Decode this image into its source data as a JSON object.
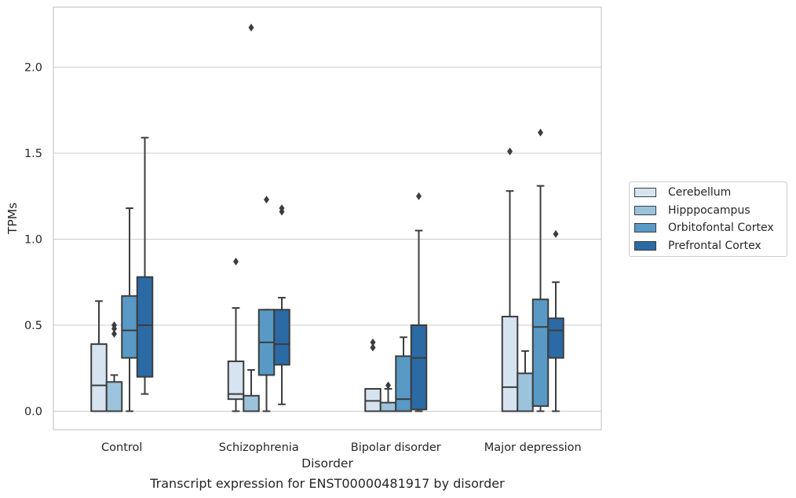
{
  "chart_data": {
    "type": "box",
    "xlabel": "Disorder",
    "ylabel": "TPMs",
    "ylim": [
      -0.1,
      2.35
    ],
    "yticks": [
      0.0,
      0.5,
      1.0,
      1.5,
      2.0
    ],
    "ytick_labels": [
      "0.0",
      "0.5",
      "1.0",
      "1.5",
      "2.0"
    ],
    "grid": "horizontal",
    "legend_position": "right",
    "categories": [
      "Control",
      "Schizophrenia",
      "Bipolar disorder",
      "Major depression"
    ],
    "series": [
      {
        "name": "Cerebellum",
        "color": "#d6e3f0",
        "boxes": [
          {
            "whislo": 0.0,
            "q1": 0.0,
            "med": 0.15,
            "q3": 0.39,
            "whishi": 0.64,
            "fliers": []
          },
          {
            "whislo": 0.0,
            "q1": 0.07,
            "med": 0.1,
            "q3": 0.29,
            "whishi": 0.6,
            "fliers": [
              0.87
            ]
          },
          {
            "whislo": 0.0,
            "q1": 0.0,
            "med": 0.06,
            "q3": 0.13,
            "whishi": 0.13,
            "fliers": [
              0.37,
              0.4
            ]
          },
          {
            "whislo": 0.0,
            "q1": 0.0,
            "med": 0.14,
            "q3": 0.55,
            "whishi": 1.28,
            "fliers": [
              1.51
            ]
          }
        ]
      },
      {
        "name": "Hipppocampus",
        "color": "#9bc3dc",
        "boxes": [
          {
            "whislo": 0.0,
            "q1": 0.0,
            "med": 0.0,
            "q3": 0.17,
            "whishi": 0.21,
            "fliers": [
              0.45,
              0.48,
              0.5
            ]
          },
          {
            "whislo": 0.0,
            "q1": 0.0,
            "med": 0.0,
            "q3": 0.09,
            "whishi": 0.24,
            "fliers": [
              2.23
            ]
          },
          {
            "whislo": 0.0,
            "q1": 0.0,
            "med": 0.0,
            "q3": 0.05,
            "whishi": 0.13,
            "fliers": [
              0.15
            ]
          },
          {
            "whislo": 0.0,
            "q1": 0.0,
            "med": 0.0,
            "q3": 0.22,
            "whishi": 0.35,
            "fliers": []
          }
        ]
      },
      {
        "name": "Orbitofontal Cortex",
        "color": "#5899c6",
        "boxes": [
          {
            "whislo": 0.0,
            "q1": 0.31,
            "med": 0.47,
            "q3": 0.67,
            "whishi": 1.18,
            "fliers": []
          },
          {
            "whislo": 0.0,
            "q1": 0.21,
            "med": 0.4,
            "q3": 0.59,
            "whishi": 0.59,
            "fliers": [
              1.23
            ]
          },
          {
            "whislo": 0.0,
            "q1": 0.0,
            "med": 0.07,
            "q3": 0.32,
            "whishi": 0.43,
            "fliers": []
          },
          {
            "whislo": 0.0,
            "q1": 0.03,
            "med": 0.49,
            "q3": 0.65,
            "whishi": 1.31,
            "fliers": [
              1.62
            ]
          }
        ]
      },
      {
        "name": "Prefrontal Cortex",
        "color": "#2b6aa5",
        "boxes": [
          {
            "whislo": 0.1,
            "q1": 0.2,
            "med": 0.5,
            "q3": 0.78,
            "whishi": 1.59,
            "fliers": []
          },
          {
            "whislo": 0.04,
            "q1": 0.27,
            "med": 0.39,
            "q3": 0.59,
            "whishi": 0.66,
            "fliers": [
              1.16,
              1.18
            ]
          },
          {
            "whislo": 0.0,
            "q1": 0.01,
            "med": 0.31,
            "q3": 0.5,
            "whishi": 1.05,
            "fliers": [
              1.25
            ]
          },
          {
            "whislo": 0.0,
            "q1": 0.31,
            "med": 0.47,
            "q3": 0.54,
            "whishi": 0.75,
            "fliers": [
              1.03
            ]
          }
        ]
      }
    ]
  },
  "caption": "Transcript expression for ENST00000481917 by disorder"
}
